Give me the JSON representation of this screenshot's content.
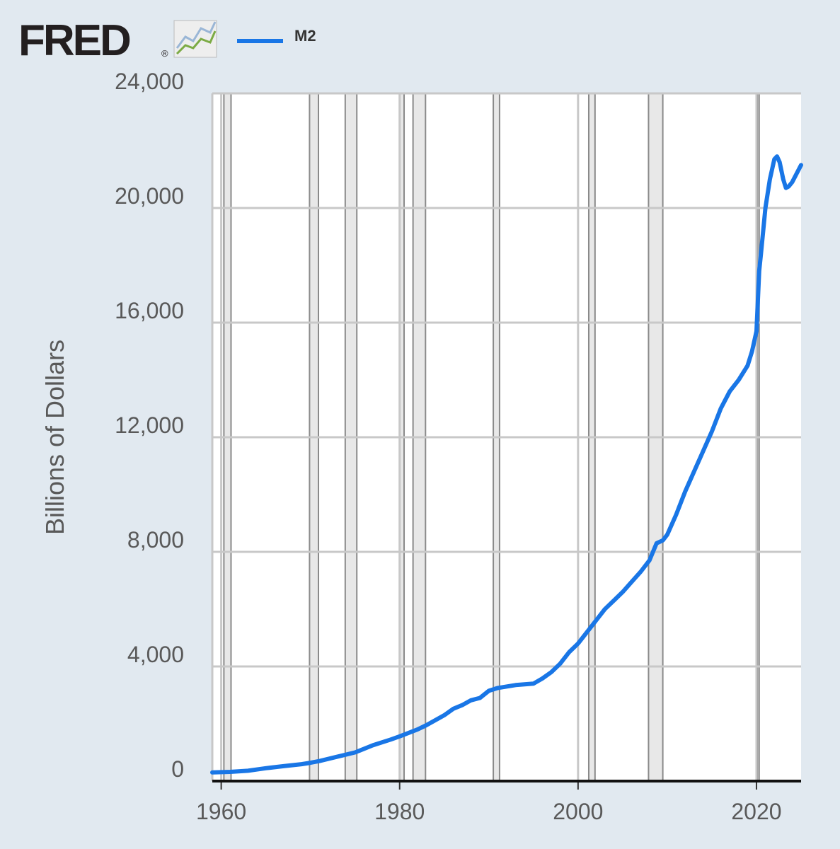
{
  "header": {
    "logo_text": "FRED",
    "logo_mark": "®",
    "logo_icon": "line-chart-icon"
  },
  "colors": {
    "background": "#e1e9f0",
    "plot_background": "#ffffff",
    "series": "#1976e6",
    "grid": "#c8c8c8",
    "recession_fill": "#e8e8e8",
    "recession_edge": "#8a8a8a",
    "axis_text": "#595959"
  },
  "chart_data": {
    "type": "line",
    "title": "",
    "xlabel": "",
    "ylabel": "Billions of Dollars",
    "xlim": [
      1959,
      2025
    ],
    "ylim": [
      0,
      24000
    ],
    "x_ticks": [
      1960,
      1980,
      2000,
      2020
    ],
    "x_tick_labels": [
      "1960",
      "1980",
      "2000",
      "2020"
    ],
    "y_ticks": [
      0,
      4000,
      8000,
      12000,
      16000,
      20000,
      24000
    ],
    "y_tick_labels": [
      "0",
      "4,000",
      "8,000",
      "12,000",
      "16,000",
      "20,000",
      "24,000"
    ],
    "grid": true,
    "legend": {
      "position": "top-left",
      "entries": [
        "M2"
      ]
    },
    "recessions": [
      [
        1960.3,
        1961.1
      ],
      [
        1969.9,
        1970.9
      ],
      [
        1973.9,
        1975.2
      ],
      [
        1980.0,
        1980.5
      ],
      [
        1981.5,
        1982.9
      ],
      [
        1990.5,
        1991.2
      ],
      [
        2001.2,
        2001.9
      ],
      [
        2007.9,
        2009.5
      ],
      [
        2020.1,
        2020.3
      ]
    ],
    "series": [
      {
        "name": "M2",
        "x": [
          1959.0,
          1961.0,
          1963.0,
          1965.0,
          1967.0,
          1969.0,
          1970.0,
          1971.0,
          1973.0,
          1975.0,
          1977.0,
          1979.0,
          1980.0,
          1982.0,
          1983.0,
          1985.0,
          1986.0,
          1987.0,
          1988.0,
          1989.0,
          1990.0,
          1991.0,
          1993.0,
          1995.0,
          1996.0,
          1997.0,
          1998.0,
          1999.0,
          2000.0,
          2001.0,
          2002.0,
          2003.0,
          2004.0,
          2005.0,
          2006.0,
          2007.0,
          2008.0,
          2008.8,
          2009.5,
          2010.0,
          2011.0,
          2012.0,
          2013.0,
          2014.0,
          2015.0,
          2016.0,
          2017.0,
          2018.0,
          2019.0,
          2019.5,
          2020.0,
          2020.3,
          2020.5,
          2021.0,
          2021.5,
          2022.0,
          2022.3,
          2022.6,
          2023.0,
          2023.3,
          2023.6,
          2024.0,
          2024.5,
          2025.0
        ],
        "y": [
          300,
          320,
          360,
          450,
          520,
          590,
          640,
          700,
          850,
          1000,
          1250,
          1450,
          1560,
          1800,
          1950,
          2300,
          2520,
          2650,
          2820,
          2900,
          3150,
          3250,
          3350,
          3400,
          3580,
          3800,
          4100,
          4500,
          4800,
          5200,
          5600,
          6000,
          6300,
          6600,
          6950,
          7300,
          7700,
          8300,
          8400,
          8600,
          9300,
          10100,
          10800,
          11500,
          12200,
          13000,
          13600,
          14000,
          14500,
          15000,
          15700,
          17800,
          18400,
          20000,
          21000,
          21700,
          21800,
          21600,
          21000,
          20700,
          20750,
          20900,
          21200,
          21500
        ]
      }
    ]
  }
}
